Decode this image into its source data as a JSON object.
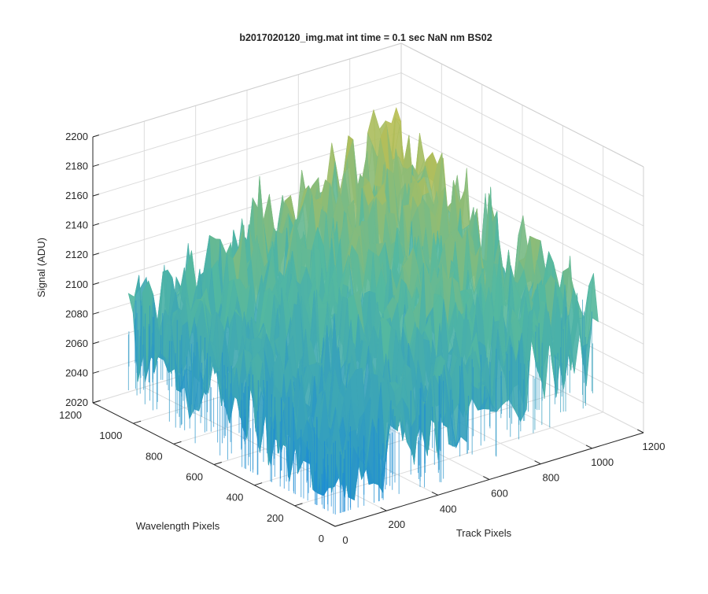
{
  "chart_data": {
    "type": "surface",
    "title": "b2017020120_img.mat int time = 0.1 sec  NaN nm BS02",
    "xlabel": "Track Pixels",
    "ylabel": "Wavelength Pixels",
    "zlabel": "Signal (ADU)",
    "xlim": [
      0,
      1200
    ],
    "ylim": [
      0,
      1200
    ],
    "zlim": [
      2020,
      2200
    ],
    "xticks": [
      "0",
      "200",
      "400",
      "600",
      "800",
      "1000",
      "1200"
    ],
    "yticks": [
      "0",
      "200",
      "400",
      "600",
      "800",
      "1000",
      "1200"
    ],
    "zticks": [
      "2020",
      "2040",
      "2060",
      "2080",
      "2100",
      "2120",
      "2140",
      "2160",
      "2180",
      "2200"
    ],
    "data_extent": {
      "x": [
        0,
        1024
      ],
      "y": [
        0,
        1024
      ]
    },
    "signal_range": [
      2028,
      2186
    ],
    "mean_signal_by_corner": {
      "near": 2058,
      "left": 2085,
      "right": 2100,
      "far": 2150
    },
    "colormap": "parula",
    "colors": {
      "low": "#1a8ad6",
      "mid": "#54b8a0",
      "high": "#e8c233"
    },
    "grid": true,
    "view": "3d"
  }
}
